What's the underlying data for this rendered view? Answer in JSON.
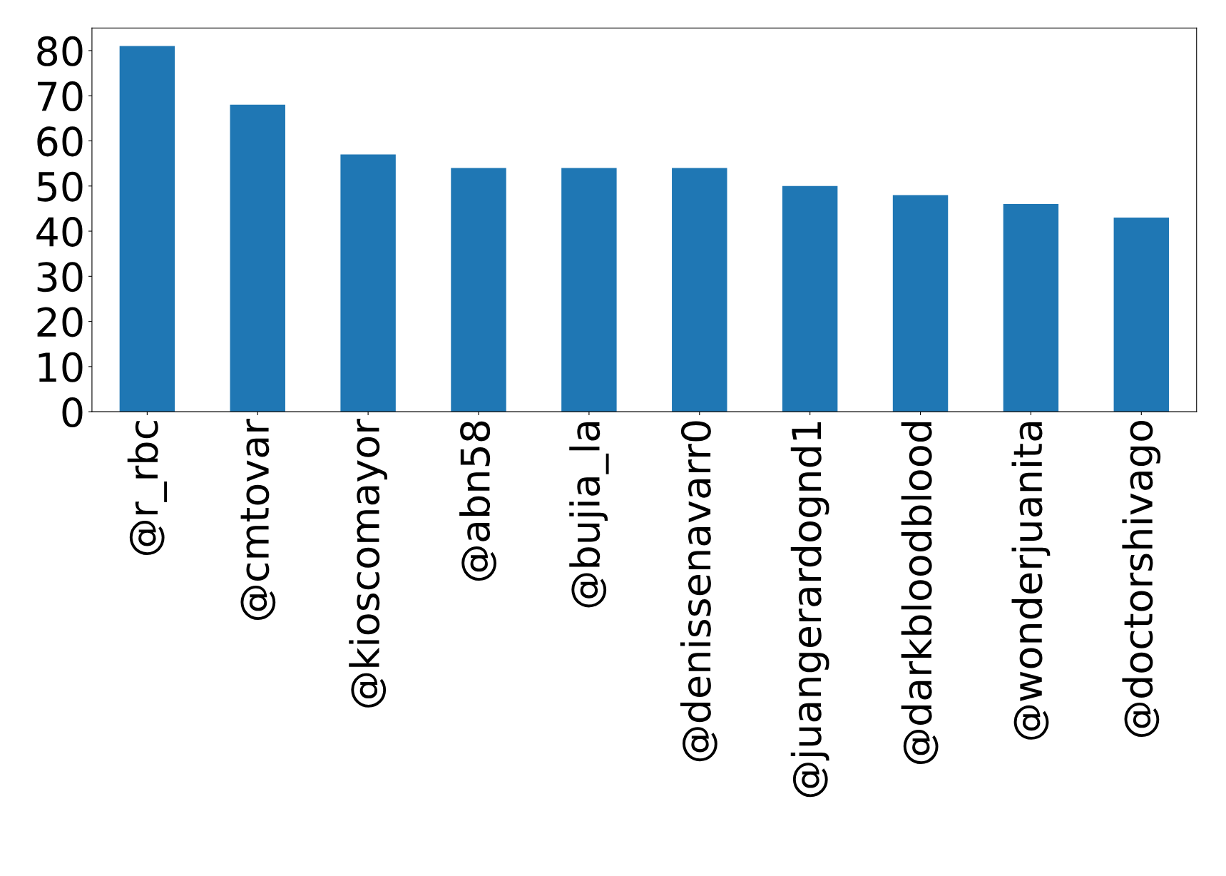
{
  "chart_data": {
    "type": "bar",
    "categories": [
      "@r_rbc",
      "@cmtovar",
      "@kioscomayor",
      "@abn58",
      "@bujia_la",
      "@denissenavarr0",
      "@juangerardognd1",
      "@darkbloodblood",
      "@wonderjuanita",
      "@doctorshivago"
    ],
    "values": [
      81,
      68,
      57,
      54,
      54,
      54,
      50,
      48,
      46,
      43
    ],
    "color": "#1f77b4",
    "ylim": [
      0,
      85
    ],
    "yticks": [
      0,
      10,
      20,
      30,
      40,
      50,
      60,
      70,
      80
    ],
    "grid": false,
    "legend": false
  }
}
